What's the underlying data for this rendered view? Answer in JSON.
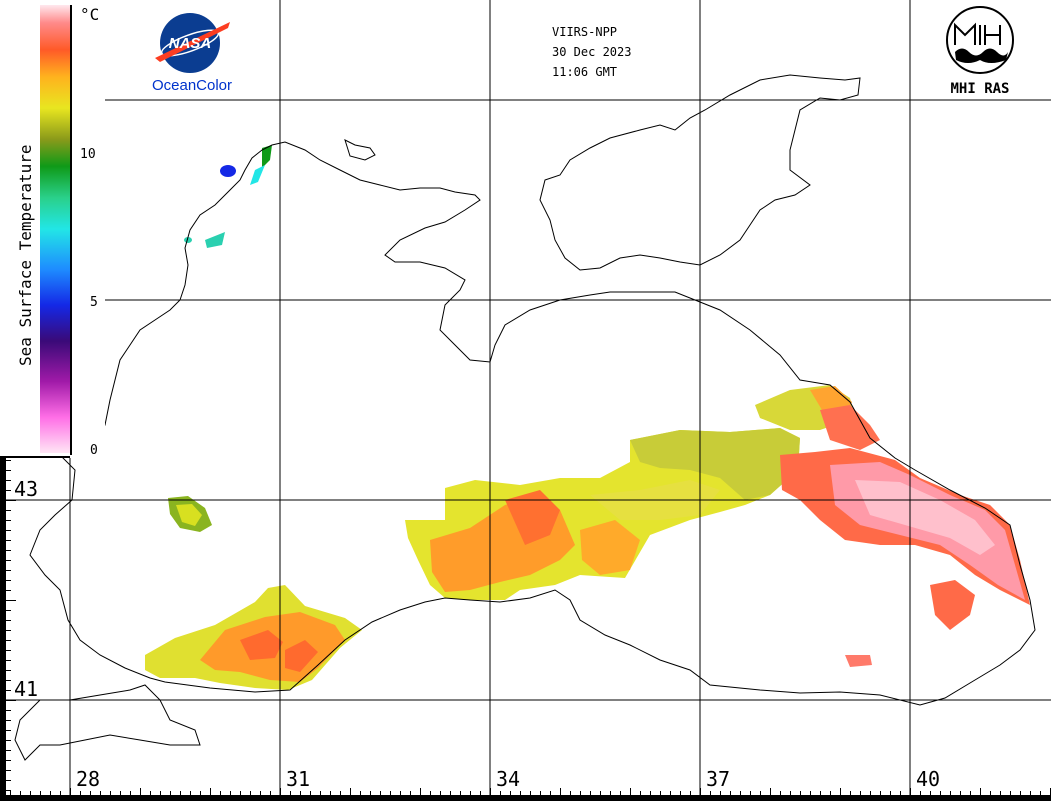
{
  "satellite": "VIIRS-NPP",
  "date": "30 Dec 2023",
  "time": "11:06 GMT",
  "logos": {
    "nasa_word": "NASA",
    "nasa_caption": "OceanColor",
    "mhi_caption": "MHI RAS"
  },
  "colorbar": {
    "title": "Sea Surface Temperature",
    "unit": "°C",
    "ticks": [
      "0",
      "5",
      "10"
    ],
    "range": [
      0,
      14
    ]
  },
  "longitude_labels": [
    "28",
    "31",
    "34",
    "37",
    "40"
  ],
  "latitude_labels": [
    "43",
    "41"
  ],
  "colors": {
    "land_outline": "#000000",
    "grid": "#000000",
    "nasa_blue": "#0b3d91",
    "nasa_red": "#fc3d21",
    "caption_blue": "#0033cc"
  }
}
